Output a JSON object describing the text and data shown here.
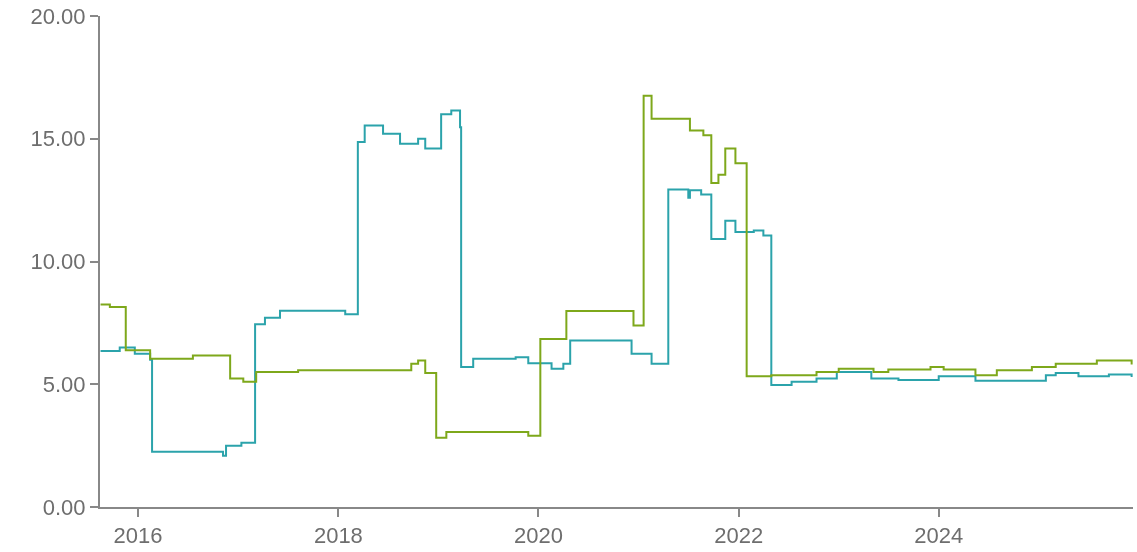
{
  "chart_data": {
    "type": "step",
    "series": [
      {
        "color": "#2ba3ab",
        "x": [
          "2015-08-17",
          "2015-10-26",
          "2015-12-20",
          "2016-02-14",
          "2016-02-21",
          "2016-11-06",
          "2016-11-17",
          "2017-01-12",
          "2017-03-03",
          "2017-04-08",
          "2017-06-02",
          "2018-01-26",
          "2018-03-13",
          "2018-04-07",
          "2018-06-13",
          "2018-08-14",
          "2018-10-19",
          "2018-11-14",
          "2019-01-11",
          "2019-02-17",
          "2019-03-21",
          "2019-03-25",
          "2019-05-08",
          "2019-10-10",
          "2019-11-25",
          "2020-02-18",
          "2020-04-01",
          "2020-04-26",
          "2020-12-06",
          "2021-02-17",
          "2021-04-19",
          "2021-07-01",
          "2021-07-07",
          "2021-08-17",
          "2021-09-23",
          "2021-11-13",
          "2021-12-20",
          "2022-02-25",
          "2022-04-01",
          "2022-04-30",
          "2022-07-13",
          "2022-10-12",
          "2022-12-25",
          "2023-04-30",
          "2023-08-07",
          "2024-01-01",
          "2024-05-14",
          "2025-01-26",
          "2025-03-03",
          "2025-05-25",
          "2025-09-13",
          "2025-12-05"
        ],
        "values": [
          6.35,
          6.5,
          6.24,
          6.0,
          2.25,
          2.09,
          2.49,
          2.62,
          7.44,
          7.71,
          7.99,
          7.85,
          14.87,
          15.54,
          15.2,
          14.8,
          15.0,
          14.6,
          16.0,
          16.15,
          15.47,
          5.7,
          6.04,
          6.1,
          5.86,
          5.63,
          5.84,
          6.78,
          6.24,
          5.84,
          12.93,
          12.6,
          12.9,
          12.73,
          10.92,
          11.66,
          11.2,
          11.26,
          11.06,
          4.97,
          5.1,
          5.23,
          5.5,
          5.23,
          5.17,
          5.33,
          5.14,
          5.37,
          5.46,
          5.33,
          5.4,
          5.3
        ]
      },
      {
        "color": "#7ea81b",
        "x": [
          "2015-08-17",
          "2015-09-20",
          "2015-11-17",
          "2016-02-14",
          "2016-07-19",
          "2016-12-02",
          "2017-01-19",
          "2017-03-07",
          "2017-08-07",
          "2018-09-24",
          "2018-10-19",
          "2018-11-14",
          "2018-12-24",
          "2019-01-30",
          "2019-11-25",
          "2020-01-08",
          "2020-04-12",
          "2020-12-13",
          "2021-01-19",
          "2021-02-17",
          "2021-07-07",
          "2021-08-25",
          "2021-09-23",
          "2021-10-19",
          "2021-11-13",
          "2021-12-20",
          "2022-01-30",
          "2022-04-30",
          "2022-10-12",
          "2023-01-01",
          "2023-05-08",
          "2023-07-01",
          "2023-12-02",
          "2024-01-19",
          "2024-05-14",
          "2024-07-31",
          "2024-12-06",
          "2025-03-03",
          "2025-07-31",
          "2025-12-05"
        ],
        "values": [
          8.25,
          8.15,
          6.38,
          6.04,
          6.17,
          5.23,
          5.1,
          5.5,
          5.57,
          5.84,
          5.97,
          5.46,
          2.82,
          3.05,
          2.9,
          6.84,
          7.98,
          7.39,
          16.75,
          15.81,
          15.34,
          15.14,
          13.2,
          13.53,
          14.6,
          14.0,
          5.33,
          5.37,
          5.5,
          5.63,
          5.5,
          5.6,
          5.7,
          5.6,
          5.37,
          5.57,
          5.7,
          5.84,
          5.97,
          5.8
        ]
      }
    ],
    "xlim": [
      "2015-08-15",
      "2025-12-10"
    ],
    "xticks": [
      {
        "value": "2016-01-01",
        "label": "2016"
      },
      {
        "value": "2018-01-01",
        "label": "2018"
      },
      {
        "value": "2020-01-01",
        "label": "2020"
      },
      {
        "value": "2022-01-01",
        "label": "2022"
      },
      {
        "value": "2024-01-01",
        "label": "2024"
      }
    ],
    "ylim": [
      0,
      20
    ],
    "yticks": [
      {
        "value": 0,
        "label": "0.00"
      },
      {
        "value": 5,
        "label": "5.00"
      },
      {
        "value": 10,
        "label": "10.00"
      },
      {
        "value": 15,
        "label": "15.00"
      },
      {
        "value": 20,
        "label": "20.00"
      }
    ],
    "line_style": "solid"
  }
}
